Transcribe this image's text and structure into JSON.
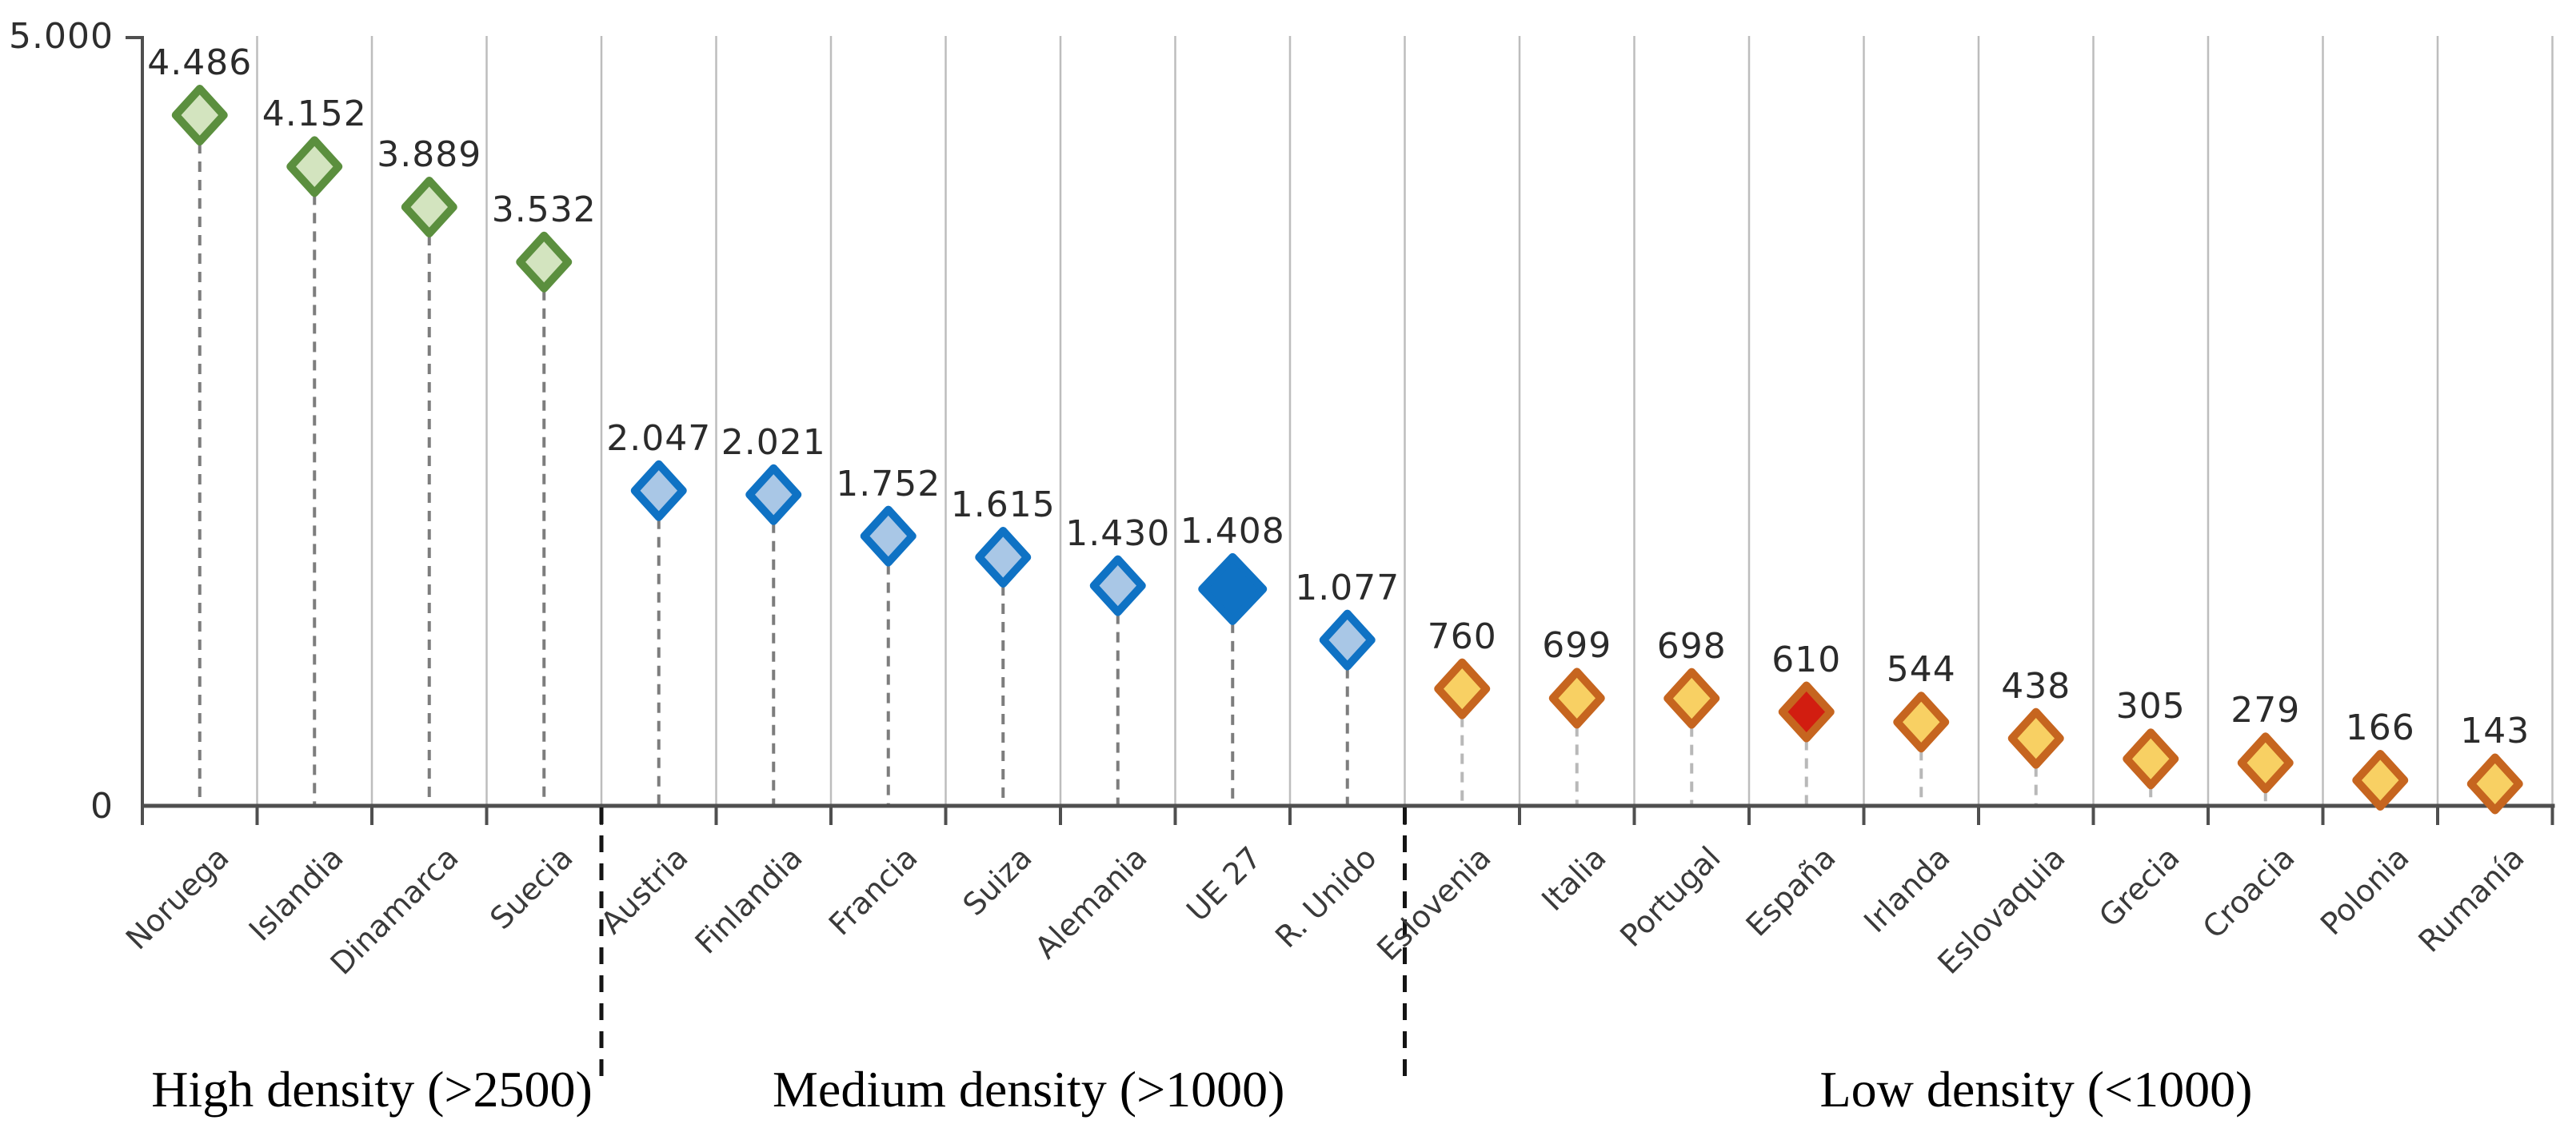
{
  "page": {
    "background": "#ffffff"
  },
  "chart_data": {
    "type": "scatter",
    "title": "",
    "xlabel": "",
    "ylabel": "",
    "marker": "diamond",
    "grid": "vertical-column-separators",
    "legend": "none",
    "y_axis": {
      "max_label": "5.000",
      "min_label": "0",
      "ylim": [
        0,
        5000
      ]
    },
    "categories": [
      "Noruega",
      "Islandia",
      "Dinamarca",
      "Suecia",
      "Austria",
      "Finlandia",
      "Francia",
      "Suiza",
      "Alemania",
      "UE 27",
      "R. Unido",
      "Eslovenia",
      "Italia",
      "Portugal",
      "España",
      "Irlanda",
      "Eslovaquia",
      "Grecia",
      "Croacia",
      "Polonia",
      "Rumanía"
    ],
    "values": [
      4486,
      4152,
      3889,
      3532,
      2047,
      2021,
      1752,
      1615,
      1430,
      1408,
      1077,
      760,
      699,
      698,
      610,
      544,
      438,
      305,
      279,
      166,
      143
    ],
    "display_values": [
      "4.486",
      "4.152",
      "3.889",
      "3.532",
      "2.047",
      "2.021",
      "1.752",
      "1.615",
      "1.430",
      "1.408",
      "1.077",
      "760",
      "699",
      "698",
      "610",
      "544",
      "438",
      "305",
      "279",
      "166",
      "143"
    ],
    "point_styles": [
      "green",
      "green",
      "green",
      "green",
      "blue",
      "blue",
      "blue",
      "blue",
      "blue",
      "blue-solid",
      "blue",
      "orange",
      "orange",
      "orange",
      "orange-red",
      "orange",
      "orange",
      "orange",
      "orange",
      "orange",
      "orange"
    ],
    "groups": [
      {
        "label": "High density (>2500)",
        "start": 0,
        "end": 3,
        "style": "green"
      },
      {
        "label": "Medium density (>1000)",
        "start": 4,
        "end": 10,
        "style": "blue"
      },
      {
        "label": "Low density (<1000)",
        "start": 11,
        "end": 20,
        "style": "orange"
      }
    ],
    "colors": {
      "green": {
        "stroke": "#5b8f3e",
        "fill": "#d3e4bf"
      },
      "blue": {
        "stroke": "#0f72c4",
        "fill": "#a9c7e6"
      },
      "blue-solid": {
        "stroke": "#0f72c4",
        "fill": "#0f72c4"
      },
      "orange": {
        "stroke": "#c6651f",
        "fill": "#f8d063"
      },
      "orange-red": {
        "stroke": "#c6651f",
        "fill": "#d21d10"
      },
      "axis": "#4f4f4f",
      "gridline": "#bdbdbd",
      "stem_dark": "#7d7d7d",
      "stem_light": "#b8b8b8",
      "divider": "#141414",
      "value_text": "#2b2b2b",
      "category_text": "#3a3a3a"
    }
  }
}
